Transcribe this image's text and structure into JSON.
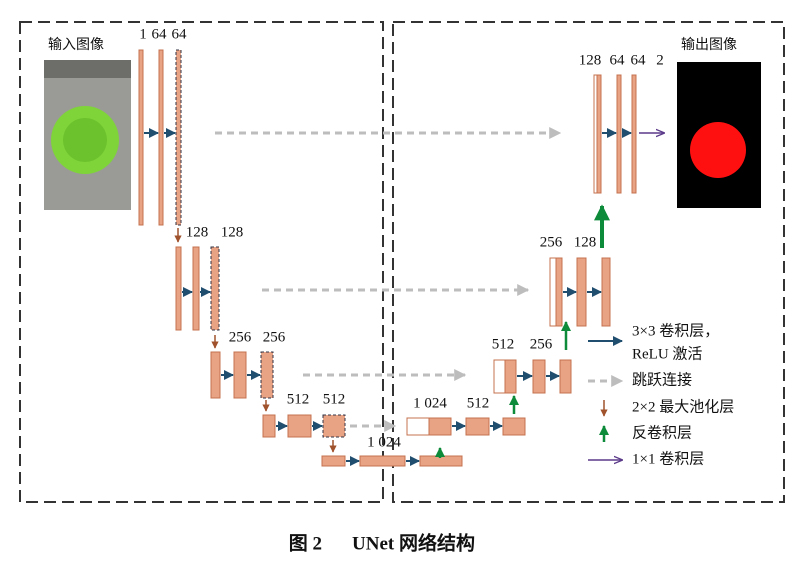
{
  "input_label": "输入图像",
  "output_label": "输出图像",
  "encoder": [
    {
      "labels": [
        "1",
        "64",
        "64"
      ]
    },
    {
      "labels": [
        "128",
        "128"
      ]
    },
    {
      "labels": [
        "256",
        "256"
      ]
    },
    {
      "labels": [
        "512",
        "512"
      ]
    },
    {
      "labels": [
        "1 024"
      ]
    }
  ],
  "decoder": [
    {
      "labels": [
        "1 024",
        "512"
      ]
    },
    {
      "labels": [
        "512",
        "256"
      ]
    },
    {
      "labels": [
        "256",
        "128"
      ]
    },
    {
      "labels": [
        "128",
        "64",
        "64",
        "2"
      ]
    }
  ],
  "legend": [
    {
      "lines": [
        "3×3 卷积层，",
        "ReLU 激活"
      ]
    },
    {
      "lines": [
        "跳跃连接"
      ]
    },
    {
      "lines": [
        "2×2 最大池化层"
      ]
    },
    {
      "lines": [
        "反卷积层"
      ]
    },
    {
      "lines": [
        "1×1 卷积层"
      ]
    }
  ],
  "caption": {
    "figure": "图 2",
    "title": "UNet 网络结构"
  }
}
